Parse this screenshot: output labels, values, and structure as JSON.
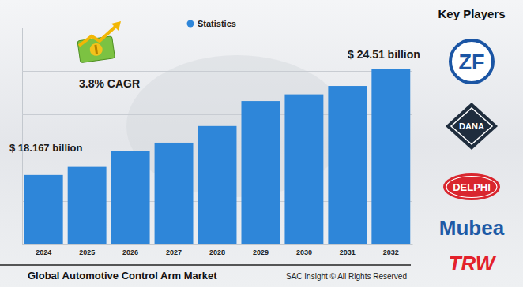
{
  "chart_data": {
    "type": "bar",
    "title": "Global Automotive Control Arm Market",
    "categories": [
      "2024",
      "2025",
      "2026",
      "2027",
      "2028",
      "2029",
      "2030",
      "2031",
      "2032"
    ],
    "series": [
      {
        "name": "Statistics",
        "color": "#2e86d9",
        "values": [
          18.167,
          18.65,
          19.6,
          20.1,
          21.1,
          22.6,
          23.0,
          23.5,
          24.51
        ]
      }
    ],
    "ylim": [
      14,
      27
    ],
    "yticks": [
      14,
      16.6,
      19.2,
      21.8,
      24.4,
      27
    ],
    "grid": true,
    "legend": "top",
    "tick_labels": "x",
    "annotations": [
      "3.8% CAGR",
      "$ 18.167 billion",
      "$ 24.51 billion"
    ],
    "key_players": {
      "title": "Key Players",
      "names": [
        "ZF",
        "DANA",
        "DELPHI",
        "Mubea",
        "TRW"
      ]
    },
    "source": "SAC Insight © All Rights Reserved"
  }
}
